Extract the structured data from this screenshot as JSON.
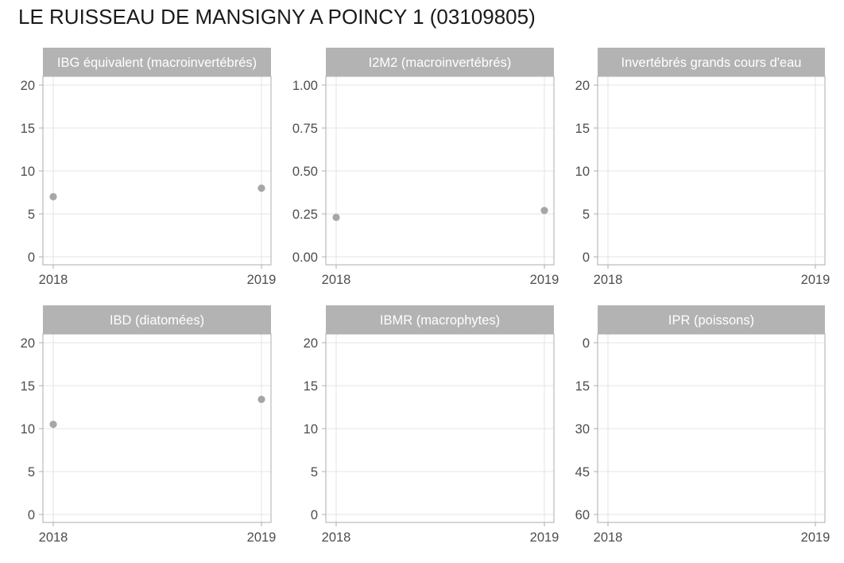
{
  "title": "LE RUISSEAU DE MANSIGNY A POINCY 1 (03109805)",
  "colors": {
    "strip": "#b3b3b3",
    "panel_border": "#b3b3b3",
    "grid": "#e5e5e5",
    "point": "#a6a6a6",
    "tick_text": "#4d4d4d"
  },
  "chart_data": [
    {
      "type": "scatter",
      "title": "IBG équivalent (macroinvertébrés)",
      "x_ticks": [
        "2018",
        "2019"
      ],
      "xlim": [
        2018,
        2019
      ],
      "y_ticks": [
        "0",
        "5",
        "10",
        "15",
        "20"
      ],
      "y_tick_values": [
        0,
        5,
        10,
        15,
        20
      ],
      "ylim": [
        0,
        20
      ],
      "y_reversed": false,
      "points": [
        {
          "x": 2018,
          "y": 7
        },
        {
          "x": 2019,
          "y": 8
        }
      ],
      "grid": true
    },
    {
      "type": "scatter",
      "title": "I2M2 (macroinvertébrés)",
      "x_ticks": [
        "2018",
        "2019"
      ],
      "xlim": [
        2018,
        2019
      ],
      "y_ticks": [
        "0.00",
        "0.25",
        "0.50",
        "0.75",
        "1.00"
      ],
      "y_tick_values": [
        0,
        0.25,
        0.5,
        0.75,
        1.0
      ],
      "ylim": [
        0,
        1
      ],
      "y_reversed": false,
      "points": [
        {
          "x": 2018,
          "y": 0.23
        },
        {
          "x": 2019,
          "y": 0.27
        }
      ],
      "grid": true
    },
    {
      "type": "scatter",
      "title": "Invertébrés grands cours d'eau",
      "x_ticks": [
        "2018",
        "2019"
      ],
      "xlim": [
        2018,
        2019
      ],
      "y_ticks": [
        "0",
        "5",
        "10",
        "15",
        "20"
      ],
      "y_tick_values": [
        0,
        5,
        10,
        15,
        20
      ],
      "ylim": [
        0,
        20
      ],
      "y_reversed": false,
      "points": [],
      "grid": true
    },
    {
      "type": "scatter",
      "title": "IBD (diatomées)",
      "x_ticks": [
        "2018",
        "2019"
      ],
      "xlim": [
        2018,
        2019
      ],
      "y_ticks": [
        "0",
        "5",
        "10",
        "15",
        "20"
      ],
      "y_tick_values": [
        0,
        5,
        10,
        15,
        20
      ],
      "ylim": [
        0,
        20
      ],
      "y_reversed": false,
      "points": [
        {
          "x": 2018,
          "y": 10.5
        },
        {
          "x": 2019,
          "y": 13.4
        }
      ],
      "grid": true
    },
    {
      "type": "scatter",
      "title": "IBMR (macrophytes)",
      "x_ticks": [
        "2018",
        "2019"
      ],
      "xlim": [
        2018,
        2019
      ],
      "y_ticks": [
        "0",
        "5",
        "10",
        "15",
        "20"
      ],
      "y_tick_values": [
        0,
        5,
        10,
        15,
        20
      ],
      "ylim": [
        0,
        20
      ],
      "y_reversed": false,
      "points": [],
      "grid": true
    },
    {
      "type": "scatter",
      "title": "IPR (poissons)",
      "x_ticks": [
        "2018",
        "2019"
      ],
      "xlim": [
        2018,
        2019
      ],
      "y_ticks": [
        "0",
        "15",
        "30",
        "45",
        "60"
      ],
      "y_tick_values": [
        0,
        15,
        30,
        45,
        60
      ],
      "ylim": [
        0,
        60
      ],
      "y_reversed": true,
      "points": [],
      "grid": true
    }
  ]
}
